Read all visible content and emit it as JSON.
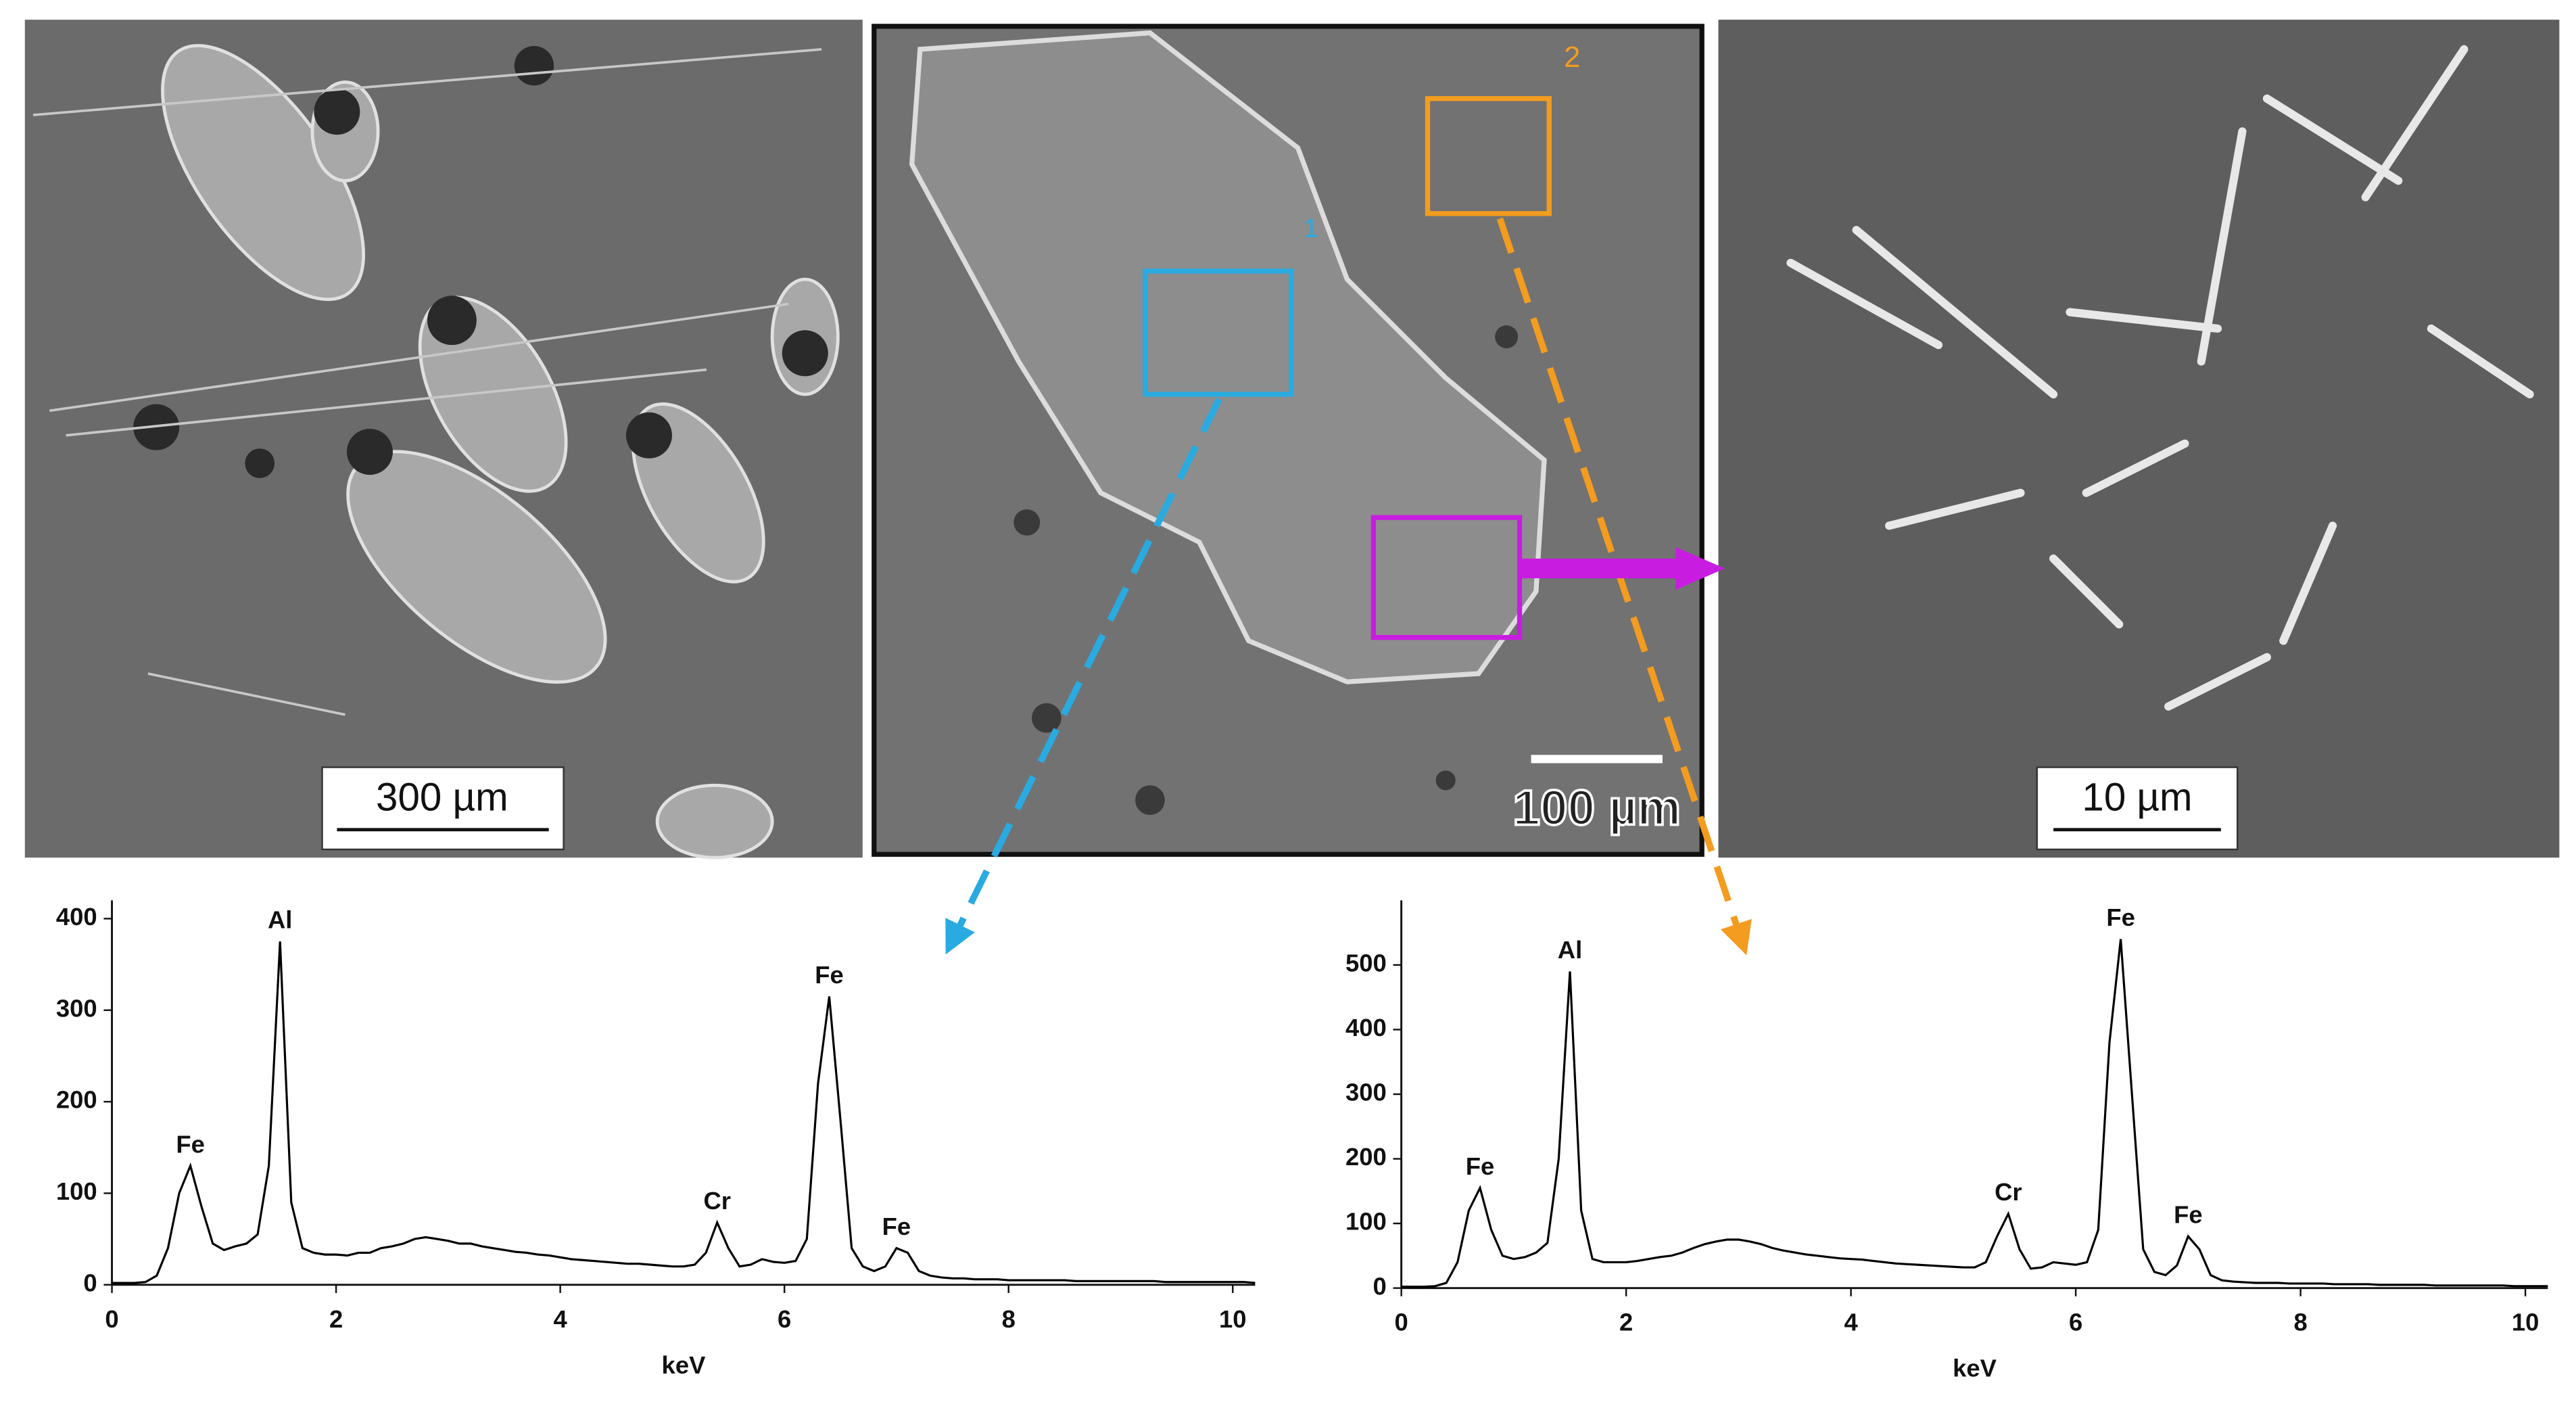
{
  "images": [
    {
      "scale_bar": "300 µm"
    },
    {
      "scale_bar": "100 µm",
      "regions": [
        "1",
        "2"
      ]
    },
    {
      "scale_bar": "10 µm"
    }
  ],
  "chart_data": [
    {
      "type": "line",
      "xlabel": "keV",
      "color": "#000000",
      "x": [
        0,
        0.1,
        0.2,
        0.3,
        0.4,
        0.5,
        0.6,
        0.7,
        0.8,
        0.9,
        1,
        1.1,
        1.2,
        1.3,
        1.4,
        1.5,
        1.6,
        1.7,
        1.8,
        1.9,
        2,
        2.1,
        2.2,
        2.3,
        2.4,
        2.5,
        2.6,
        2.7,
        2.8,
        2.9,
        3,
        3.1,
        3.2,
        3.3,
        3.4,
        3.5,
        3.6,
        3.7,
        3.8,
        3.9,
        4,
        4.1,
        4.2,
        4.3,
        4.4,
        4.5,
        4.6,
        4.7,
        4.8,
        4.9,
        5,
        5.1,
        5.2,
        5.3,
        5.4,
        5.5,
        5.6,
        5.7,
        5.8,
        5.9,
        6,
        6.1,
        6.2,
        6.3,
        6.4,
        6.5,
        6.6,
        6.7,
        6.8,
        6.9,
        7,
        7.1,
        7.2,
        7.3,
        7.4,
        7.5,
        7.6,
        7.7,
        7.8,
        7.9,
        8,
        8.1,
        8.2,
        8.3,
        8.4,
        8.5,
        8.6,
        8.7,
        8.8,
        8.9,
        9,
        9.1,
        9.2,
        9.3,
        9.4,
        9.5,
        9.6,
        9.7,
        9.8,
        9.9,
        10,
        10.1,
        10.2
      ],
      "values": [
        2,
        2,
        2,
        3,
        10,
        40,
        100,
        130,
        85,
        45,
        38,
        42,
        45,
        55,
        130,
        375,
        90,
        40,
        35,
        33,
        33,
        32,
        35,
        35,
        40,
        42,
        45,
        50,
        52,
        50,
        48,
        45,
        45,
        42,
        40,
        38,
        36,
        35,
        33,
        32,
        30,
        28,
        27,
        26,
        25,
        24,
        23,
        23,
        22,
        21,
        20,
        20,
        22,
        35,
        68,
        40,
        20,
        22,
        28,
        25,
        24,
        26,
        50,
        220,
        315,
        180,
        40,
        20,
        15,
        20,
        40,
        35,
        15,
        10,
        8,
        7,
        7,
        6,
        6,
        6,
        5,
        5,
        5,
        5,
        5,
        5,
        4,
        4,
        4,
        4,
        4,
        4,
        4,
        4,
        3,
        3,
        3,
        3,
        3,
        3,
        3,
        3,
        2
      ],
      "xlim": [
        0,
        10.2
      ],
      "ylim": [
        0,
        420
      ],
      "xticks": [
        0,
        2,
        4,
        6,
        8,
        10
      ],
      "yticks": [
        0,
        100,
        200,
        300,
        400
      ],
      "annotations": [
        {
          "text": "Fe",
          "x": 0.7
        },
        {
          "text": "Al",
          "x": 1.5
        },
        {
          "text": "Cr",
          "x": 5.4
        },
        {
          "text": "Fe",
          "x": 6.4
        },
        {
          "text": "Fe",
          "x": 7
        }
      ]
    },
    {
      "type": "line",
      "xlabel": "keV",
      "color": "#000000",
      "x": [
        0,
        0.1,
        0.2,
        0.3,
        0.4,
        0.5,
        0.6,
        0.7,
        0.8,
        0.9,
        1,
        1.1,
        1.2,
        1.3,
        1.4,
        1.5,
        1.6,
        1.7,
        1.8,
        1.9,
        2,
        2.1,
        2.2,
        2.3,
        2.4,
        2.5,
        2.6,
        2.7,
        2.8,
        2.9,
        3,
        3.1,
        3.2,
        3.3,
        3.4,
        3.5,
        3.6,
        3.7,
        3.8,
        3.9,
        4,
        4.1,
        4.2,
        4.3,
        4.4,
        4.5,
        4.6,
        4.7,
        4.8,
        4.9,
        5,
        5.1,
        5.2,
        5.3,
        5.4,
        5.5,
        5.6,
        5.7,
        5.8,
        5.9,
        6,
        6.1,
        6.2,
        6.3,
        6.4,
        6.5,
        6.6,
        6.7,
        6.8,
        6.9,
        7,
        7.1,
        7.2,
        7.3,
        7.4,
        7.5,
        7.6,
        7.7,
        7.8,
        7.9,
        8,
        8.1,
        8.2,
        8.3,
        8.4,
        8.5,
        8.6,
        8.7,
        8.8,
        8.9,
        9,
        9.1,
        9.2,
        9.3,
        9.4,
        9.5,
        9.6,
        9.7,
        9.8,
        9.9,
        10,
        10.1,
        10.2
      ],
      "values": [
        2,
        2,
        2,
        3,
        8,
        40,
        120,
        155,
        90,
        50,
        45,
        48,
        55,
        70,
        200,
        490,
        120,
        45,
        40,
        40,
        40,
        42,
        45,
        48,
        50,
        55,
        62,
        68,
        72,
        75,
        75,
        72,
        68,
        62,
        58,
        55,
        52,
        50,
        48,
        46,
        45,
        44,
        42,
        40,
        38,
        37,
        36,
        35,
        34,
        33,
        32,
        32,
        40,
        80,
        115,
        60,
        30,
        32,
        40,
        38,
        36,
        40,
        90,
        380,
        540,
        300,
        60,
        25,
        20,
        35,
        80,
        60,
        20,
        12,
        10,
        9,
        8,
        8,
        8,
        7,
        7,
        7,
        7,
        6,
        6,
        6,
        6,
        5,
        5,
        5,
        5,
        5,
        4,
        4,
        4,
        4,
        4,
        4,
        4,
        3,
        3,
        3,
        3
      ],
      "xlim": [
        0,
        10.2
      ],
      "ylim": [
        0,
        600
      ],
      "xticks": [
        0,
        2,
        4,
        6,
        8,
        10
      ],
      "yticks": [
        0,
        100,
        200,
        300,
        400,
        500
      ],
      "annotations": [
        {
          "text": "Fe",
          "x": 0.7
        },
        {
          "text": "Al",
          "x": 1.5
        },
        {
          "text": "Cr",
          "x": 5.4
        },
        {
          "text": "Fe",
          "x": 6.4
        },
        {
          "text": "Fe",
          "x": 7
        }
      ]
    }
  ]
}
